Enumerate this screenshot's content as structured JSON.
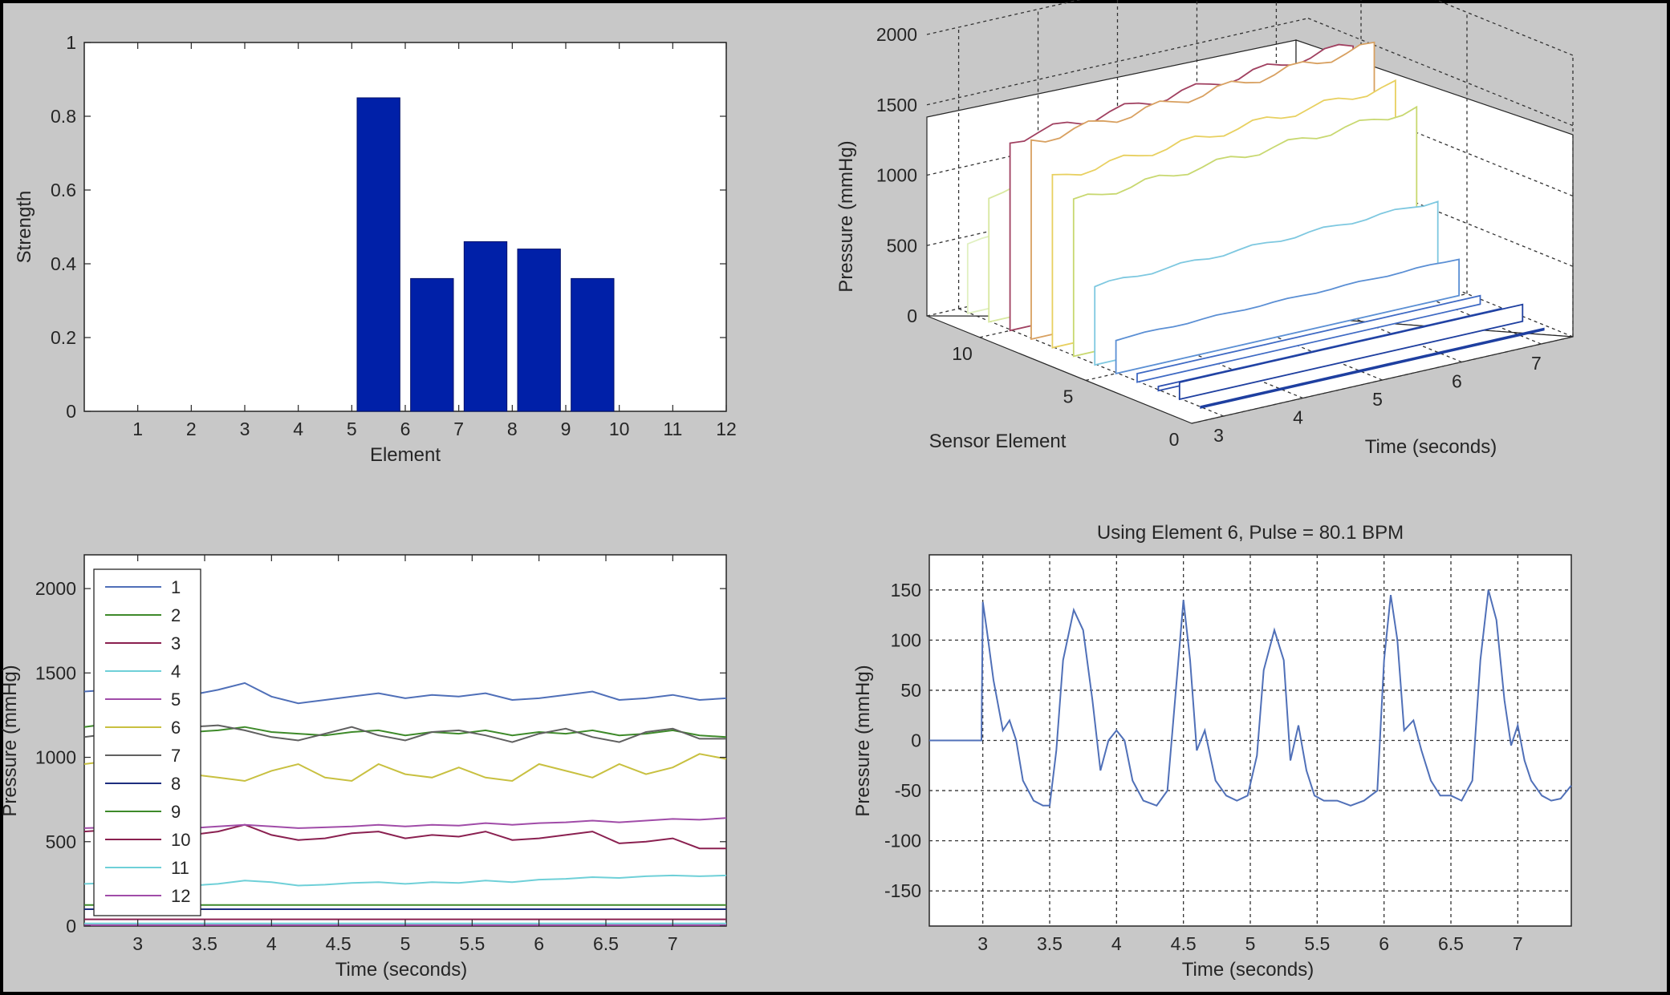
{
  "chart_data": [
    {
      "id": "top-left",
      "type": "bar",
      "xlabel": "Element",
      "ylabel": "Strength",
      "xlim": [
        0,
        12
      ],
      "ylim": [
        0,
        1
      ],
      "categories": [
        "1",
        "2",
        "3",
        "4",
        "5",
        "6",
        "7",
        "8",
        "9",
        "10",
        "11",
        "12"
      ],
      "values": [
        0,
        0,
        0,
        0,
        0,
        0.85,
        0.36,
        0.46,
        0.44,
        0.36,
        0,
        0
      ],
      "xticks": [
        "1",
        "2",
        "3",
        "4",
        "5",
        "6",
        "7",
        "8",
        "9",
        "10",
        "11",
        "12"
      ],
      "yticks": [
        "0",
        "0.2",
        "0.4",
        "0.6",
        "0.8",
        "1"
      ],
      "bar_color": "#0020A8",
      "grid": false
    },
    {
      "id": "top-right",
      "type": "line",
      "view": "3d-waterfall",
      "xlabel": "Time (seconds)",
      "ylabel": "Sensor Element",
      "zlabel": "Pressure (mmHg)",
      "xticks": [
        "3",
        "4",
        "5",
        "6",
        "7"
      ],
      "yticks": [
        "0",
        "5",
        "10"
      ],
      "zticks": [
        "0",
        "500",
        "1000",
        "1500",
        "2000"
      ],
      "grid": true,
      "series": [
        {
          "element": 1,
          "level": 10,
          "color": "#1E3FA0"
        },
        {
          "element": 2,
          "level": 120,
          "color": "#1E3FA0"
        },
        {
          "element": 3,
          "level": 30,
          "color": "#2C4FB0"
        },
        {
          "element": 4,
          "level": 60,
          "color": "#3F6AC4"
        },
        {
          "element": 5,
          "level": 240,
          "color": "#5B8FD4"
        },
        {
          "element": 6,
          "level": 560,
          "color": "#7EC8E0"
        },
        {
          "element": 7,
          "level": 1100,
          "color": "#C8D870"
        },
        {
          "element": 8,
          "level": 1200,
          "color": "#E8D060"
        },
        {
          "element": 9,
          "level": 1400,
          "color": "#D8A060"
        },
        {
          "element": 10,
          "level": 1350,
          "color": "#A04060"
        },
        {
          "element": 11,
          "level": 900,
          "color": "#D8E8A0"
        },
        {
          "element": 12,
          "level": 500,
          "color": "#E0F0C0"
        }
      ]
    },
    {
      "id": "bottom-left",
      "type": "line",
      "xlabel": "Time (seconds)",
      "ylabel": "Pressure (mmHg)",
      "xlim": [
        2.6,
        7.4
      ],
      "ylim": [
        0,
        2200
      ],
      "xticks": [
        "3",
        "3.5",
        "4",
        "4.5",
        "5",
        "5.5",
        "6",
        "6.5",
        "7"
      ],
      "yticks": [
        "0",
        "500",
        "1000",
        "1500",
        "2000"
      ],
      "legend": "top-left",
      "grid": false,
      "x": [
        2.6,
        2.8,
        3.0,
        3.2,
        3.4,
        3.6,
        3.8,
        4.0,
        4.2,
        4.4,
        4.6,
        4.8,
        5.0,
        5.2,
        5.4,
        5.6,
        5.8,
        6.0,
        6.2,
        6.4,
        6.6,
        6.8,
        7.0,
        7.2,
        7.4
      ],
      "series": [
        {
          "name": "1",
          "color": "#4F6FB8",
          "values": [
            1390,
            1400,
            1395,
            1380,
            1370,
            1400,
            1440,
            1360,
            1320,
            1340,
            1360,
            1380,
            1350,
            1370,
            1360,
            1380,
            1340,
            1350,
            1370,
            1390,
            1340,
            1350,
            1370,
            1340,
            1350
          ]
        },
        {
          "name": "2",
          "color": "#3E8A2A",
          "values": [
            1180,
            1200,
            1190,
            1170,
            1150,
            1160,
            1180,
            1150,
            1140,
            1130,
            1150,
            1160,
            1130,
            1150,
            1140,
            1160,
            1130,
            1150,
            1140,
            1160,
            1130,
            1140,
            1160,
            1130,
            1120
          ]
        },
        {
          "name": "3",
          "color": "#8A2050",
          "values": [
            560,
            570,
            560,
            550,
            540,
            560,
            600,
            540,
            510,
            520,
            550,
            560,
            520,
            540,
            530,
            560,
            510,
            520,
            540,
            560,
            490,
            500,
            520,
            460,
            460
          ]
        },
        {
          "name": "4",
          "color": "#6FD0D8",
          "values": [
            250,
            255,
            250,
            245,
            240,
            250,
            270,
            260,
            240,
            245,
            255,
            260,
            250,
            260,
            255,
            270,
            260,
            275,
            280,
            290,
            285,
            295,
            300,
            295,
            300
          ]
        },
        {
          "name": "5",
          "color": "#A04CA8",
          "values": [
            580,
            585,
            580,
            575,
            580,
            590,
            600,
            590,
            580,
            585,
            590,
            600,
            590,
            600,
            595,
            610,
            600,
            610,
            615,
            625,
            615,
            625,
            635,
            630,
            640
          ]
        },
        {
          "name": "6",
          "color": "#C8C040",
          "values": [
            960,
            980,
            960,
            940,
            900,
            880,
            860,
            920,
            960,
            880,
            860,
            960,
            900,
            880,
            940,
            880,
            860,
            960,
            920,
            880,
            960,
            900,
            940,
            1020,
            990
          ]
        },
        {
          "name": "7",
          "color": "#606060",
          "values": [
            1120,
            1140,
            1130,
            1150,
            1180,
            1190,
            1160,
            1120,
            1100,
            1140,
            1180,
            1130,
            1100,
            1150,
            1160,
            1130,
            1090,
            1140,
            1170,
            1120,
            1090,
            1150,
            1170,
            1110,
            1110
          ]
        },
        {
          "name": "8",
          "color": "#1E2E7E",
          "values": [
            100,
            100,
            100,
            100,
            100,
            100,
            100,
            100,
            100,
            100,
            100,
            100,
            100,
            100,
            100,
            100,
            100,
            100,
            100,
            100,
            100,
            100,
            100,
            100,
            100
          ]
        },
        {
          "name": "9",
          "color": "#3E8A2A",
          "values": [
            125,
            125,
            125,
            125,
            125,
            125,
            125,
            125,
            125,
            125,
            125,
            125,
            125,
            125,
            125,
            125,
            125,
            125,
            125,
            125,
            125,
            125,
            125,
            125,
            125
          ]
        },
        {
          "name": "10",
          "color": "#8A2050",
          "values": [
            40,
            40,
            40,
            40,
            40,
            40,
            40,
            40,
            40,
            40,
            40,
            40,
            40,
            40,
            40,
            40,
            40,
            40,
            40,
            40,
            40,
            40,
            40,
            40,
            40
          ]
        },
        {
          "name": "11",
          "color": "#6FD0D8",
          "values": [
            15,
            15,
            15,
            15,
            15,
            15,
            15,
            15,
            15,
            15,
            15,
            15,
            15,
            15,
            15,
            15,
            15,
            15,
            15,
            15,
            15,
            15,
            15,
            15,
            15
          ]
        },
        {
          "name": "12",
          "color": "#A04CA8",
          "values": [
            5,
            5,
            5,
            5,
            5,
            5,
            5,
            5,
            5,
            5,
            5,
            5,
            5,
            5,
            5,
            5,
            5,
            5,
            5,
            5,
            5,
            5,
            5,
            5,
            5
          ]
        }
      ]
    },
    {
      "id": "bottom-right",
      "type": "line",
      "title": "Using Element 6, Pulse = 80.1 BPM",
      "xlabel": "Time (seconds)",
      "ylabel": "Pressure (mmHg)",
      "xlim": [
        2.6,
        7.4
      ],
      "ylim": [
        -185,
        185
      ],
      "xticks": [
        "3",
        "3.5",
        "4",
        "4.5",
        "5",
        "5.5",
        "6",
        "6.5",
        "7"
      ],
      "yticks": [
        "150",
        "100",
        "50",
        "0",
        "-50",
        "-100",
        "-150"
      ],
      "grid": true,
      "line_color": "#5070B8",
      "x": [
        2.6,
        2.99,
        3.0,
        3.03,
        3.08,
        3.15,
        3.2,
        3.25,
        3.3,
        3.38,
        3.45,
        3.5,
        3.55,
        3.6,
        3.68,
        3.75,
        3.82,
        3.88,
        3.94,
        4.0,
        4.06,
        4.12,
        4.2,
        4.3,
        4.38,
        4.45,
        4.5,
        4.55,
        4.6,
        4.66,
        4.74,
        4.82,
        4.9,
        4.98,
        5.05,
        5.1,
        5.18,
        5.25,
        5.3,
        5.36,
        5.42,
        5.48,
        5.55,
        5.65,
        5.75,
        5.85,
        5.95,
        6.0,
        6.05,
        6.1,
        6.15,
        6.22,
        6.28,
        6.35,
        6.42,
        6.5,
        6.58,
        6.66,
        6.72,
        6.78,
        6.84,
        6.9,
        6.95,
        7.0,
        7.05,
        7.1,
        7.18,
        7.25,
        7.32,
        7.4
      ],
      "values": [
        0,
        0,
        138,
        110,
        60,
        10,
        20,
        0,
        -40,
        -60,
        -65,
        -65,
        -10,
        80,
        130,
        110,
        40,
        -30,
        0,
        10,
        0,
        -40,
        -60,
        -65,
        -50,
        60,
        140,
        80,
        -10,
        10,
        -40,
        -55,
        -60,
        -55,
        -15,
        70,
        110,
        80,
        -20,
        15,
        -30,
        -55,
        -60,
        -60,
        -65,
        -60,
        -50,
        80,
        145,
        100,
        10,
        20,
        -10,
        -40,
        -55,
        -55,
        -60,
        -40,
        80,
        150,
        120,
        40,
        -5,
        15,
        -20,
        -40,
        -55,
        -60,
        -58,
        -45
      ]
    }
  ]
}
